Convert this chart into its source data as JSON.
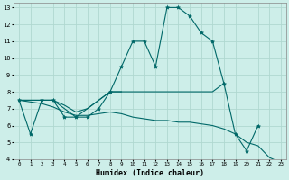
{
  "xlabel": "Humidex (Indice chaleur)",
  "bg_color": "#cdeee9",
  "grid_color": "#b0d8d0",
  "line_color": "#006868",
  "xlim": [
    -0.5,
    23.5
  ],
  "ylim": [
    4,
    13.3
  ],
  "xticks": [
    0,
    1,
    2,
    3,
    4,
    5,
    6,
    7,
    8,
    9,
    10,
    11,
    12,
    13,
    14,
    15,
    16,
    17,
    18,
    19,
    20,
    21,
    22,
    23
  ],
  "yticks": [
    4,
    5,
    6,
    7,
    8,
    9,
    10,
    11,
    12,
    13
  ],
  "main_curve": {
    "x": [
      0,
      1,
      2,
      3,
      4,
      5,
      6,
      7,
      8,
      9,
      10,
      11,
      12,
      13,
      14,
      15,
      16,
      17,
      18,
      19,
      20,
      21
    ],
    "y": [
      7.5,
      5.5,
      7.5,
      7.5,
      6.5,
      6.5,
      6.5,
      7.0,
      8.0,
      9.5,
      11.0,
      11.0,
      9.5,
      13.0,
      13.0,
      12.5,
      11.5,
      11.0,
      8.5,
      5.5,
      4.5,
      6.0
    ]
  },
  "upper_line": {
    "x": [
      0,
      2,
      3,
      4,
      5,
      6,
      7,
      8,
      9,
      10,
      11,
      12,
      13,
      14,
      15,
      16,
      17,
      18
    ],
    "y": [
      7.5,
      7.5,
      7.5,
      7.2,
      6.8,
      7.0,
      7.5,
      8.0,
      8.0,
      8.0,
      8.0,
      8.0,
      8.0,
      8.0,
      8.0,
      8.0,
      8.0,
      8.5
    ]
  },
  "desc_line": {
    "x": [
      0,
      2,
      3,
      4,
      5,
      6,
      7,
      8,
      9,
      10,
      11,
      12,
      13,
      14,
      15,
      16,
      17,
      18,
      19,
      20,
      21,
      22,
      23
    ],
    "y": [
      7.5,
      7.3,
      7.1,
      6.8,
      6.6,
      6.6,
      6.7,
      6.8,
      6.7,
      6.5,
      6.4,
      6.3,
      6.3,
      6.2,
      6.2,
      6.1,
      6.0,
      5.8,
      5.5,
      5.0,
      4.8,
      4.1,
      3.8
    ]
  },
  "mid_line": {
    "x": [
      0,
      2,
      3,
      5,
      6,
      7,
      8,
      9
    ],
    "y": [
      7.5,
      7.5,
      7.5,
      6.5,
      7.0,
      7.5,
      8.0,
      8.0
    ]
  }
}
